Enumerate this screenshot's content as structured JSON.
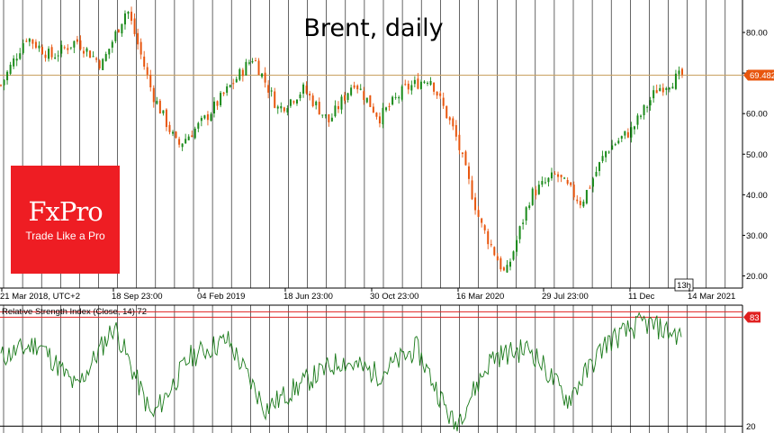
{
  "chart_data": [
    {
      "type": "candlestick",
      "title": "Brent, daily",
      "x_tick_labels": [
        "21 Mar 2018, UTC+2",
        "18 Sep 23:00",
        "04 Feb 2019",
        "18 Jun 23:00",
        "30 Oct 23:00",
        "16 Mar 2020",
        "29 Jul 23:00",
        "11 Dec",
        "14 Mar 2021"
      ],
      "y_tick_labels": [
        "80.00",
        "70.00",
        "60.00",
        "50.00",
        "40.00",
        "30.00",
        "20.00"
      ],
      "ylim": [
        17,
        88
      ],
      "grid": true,
      "current_price_label": "69.482",
      "current_price": 69.48,
      "timer_label": "13h",
      "up_color": "#1a8a1a",
      "down_color": "#e8560e",
      "price_line_color": "#c8a060",
      "approx_close_path": [
        {
          "x": "21 Mar 2018",
          "y": 67
        },
        {
          "x": "May 2018",
          "y": 79
        },
        {
          "x": "Jun 2018",
          "y": 74
        },
        {
          "x": "Jul 2018",
          "y": 78
        },
        {
          "x": "Aug 2018",
          "y": 72
        },
        {
          "x": "Oct 2018",
          "y": 86
        },
        {
          "x": "Nov 2018",
          "y": 65
        },
        {
          "x": "Dec 2018",
          "y": 52
        },
        {
          "x": "Jan 2019",
          "y": 58
        },
        {
          "x": "Mar 2019",
          "y": 66
        },
        {
          "x": "Apr 2019",
          "y": 74
        },
        {
          "x": "Jun 2019",
          "y": 61
        },
        {
          "x": "Jul 2019",
          "y": 66
        },
        {
          "x": "Aug 2019",
          "y": 58
        },
        {
          "x": "Sep 2019",
          "y": 68
        },
        {
          "x": "Oct 2019",
          "y": 59
        },
        {
          "x": "Dec 2019",
          "y": 66
        },
        {
          "x": "Jan 2020",
          "y": 69
        },
        {
          "x": "Feb 2020",
          "y": 55
        },
        {
          "x": "Mar 2020",
          "y": 33
        },
        {
          "x": "Apr 2020",
          "y": 20
        },
        {
          "x": "Jun 2020",
          "y": 40
        },
        {
          "x": "Aug 2020",
          "y": 45
        },
        {
          "x": "Oct 2020",
          "y": 38
        },
        {
          "x": "Dec 2020",
          "y": 51
        },
        {
          "x": "Jan 2021",
          "y": 56
        },
        {
          "x": "Feb 2021",
          "y": 66
        },
        {
          "x": "Mar 2021",
          "y": 69.5
        }
      ]
    },
    {
      "type": "line",
      "title": "Relative Strength Index (Close, 14) 72",
      "y_tick_labels": [
        "20"
      ],
      "ylim": [
        16,
        90
      ],
      "level_lines": [
        20,
        83
      ],
      "level_label": "83",
      "series_color": "#1a7a1a",
      "approx_values": [
        {
          "x": "21 Mar 2018",
          "y": 60
        },
        {
          "x": "May 2018",
          "y": 68
        },
        {
          "x": "Aug 2018",
          "y": 42
        },
        {
          "x": "Oct 2018",
          "y": 78
        },
        {
          "x": "Dec 2018",
          "y": 25
        },
        {
          "x": "Feb 2019",
          "y": 60
        },
        {
          "x": "Apr 2019",
          "y": 70
        },
        {
          "x": "Jun 2019",
          "y": 30
        },
        {
          "x": "Aug 2019",
          "y": 45
        },
        {
          "x": "Sep 2019",
          "y": 58
        },
        {
          "x": "Nov 2019",
          "y": 50
        },
        {
          "x": "Jan 2020",
          "y": 65
        },
        {
          "x": "Mar 2020",
          "y": 20
        },
        {
          "x": "May 2020",
          "y": 60
        },
        {
          "x": "Aug 2020",
          "y": 65
        },
        {
          "x": "Oct 2020",
          "y": 35
        },
        {
          "x": "Dec 2020",
          "y": 68
        },
        {
          "x": "Feb 2021",
          "y": 80
        },
        {
          "x": "Mar 2021",
          "y": 72
        }
      ]
    }
  ],
  "logo": {
    "name": "FxPro",
    "tagline": "Trade Like a Pro"
  }
}
